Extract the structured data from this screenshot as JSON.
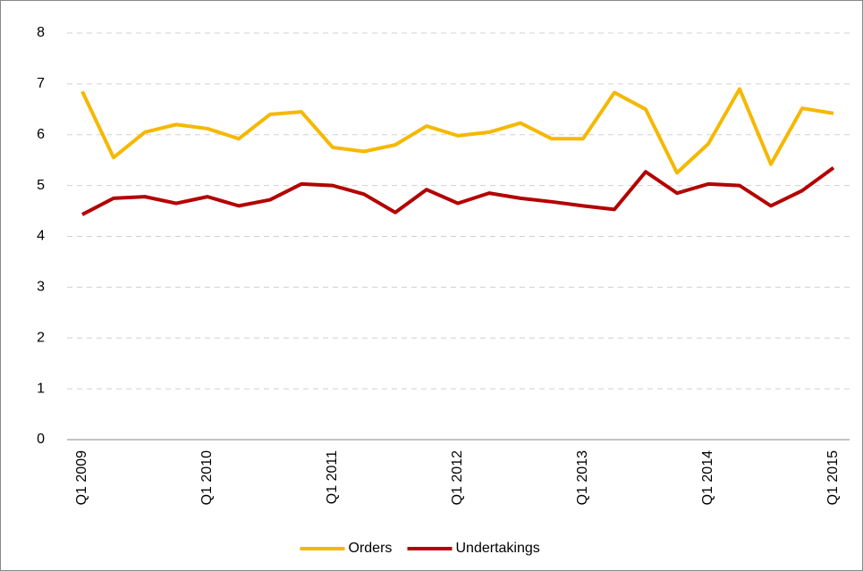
{
  "chart_data": {
    "type": "line",
    "categories": [
      "Q1 2009",
      null,
      null,
      null,
      "Q1 2010",
      null,
      null,
      null,
      "Q1 2011",
      null,
      null,
      null,
      "Q1 2012",
      null,
      null,
      null,
      "Q1 2013",
      null,
      null,
      null,
      "Q1 2014",
      null,
      null,
      null,
      "Q1 2015"
    ],
    "series": [
      {
        "name": "Orders",
        "color": "#f5b800",
        "values": [
          6.85,
          5.55,
          6.05,
          6.2,
          6.12,
          5.92,
          6.4,
          6.45,
          5.75,
          5.67,
          5.8,
          6.17,
          5.98,
          6.05,
          6.23,
          5.92,
          5.92,
          6.83,
          6.5,
          5.25,
          5.82,
          6.9,
          5.42,
          6.52,
          6.42
        ]
      },
      {
        "name": "Undertakings",
        "color": "#b40000",
        "values": [
          4.43,
          4.75,
          4.78,
          4.65,
          4.78,
          4.6,
          4.72,
          5.03,
          5.0,
          4.83,
          4.47,
          4.92,
          4.65,
          4.85,
          4.75,
          4.68,
          4.6,
          4.53,
          5.27,
          4.85,
          5.03,
          5.0,
          4.6,
          4.9,
          5.35
        ]
      }
    ],
    "ylim": [
      0,
      8
    ],
    "yticks": [
      0,
      1,
      2,
      3,
      4,
      5,
      6,
      7,
      8
    ],
    "grid": true,
    "legend": "bottom"
  }
}
